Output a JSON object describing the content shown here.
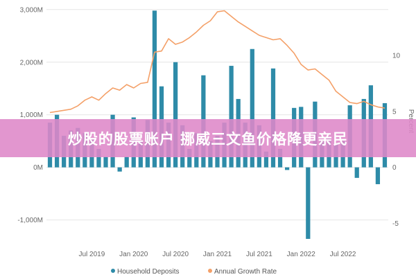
{
  "banner": {
    "text": "炒股的股票账户 挪威三文鱼价格降更亲民"
  },
  "chart_data": {
    "type": "bar+line",
    "title": "",
    "left_axis": {
      "ticks": [
        {
          "value": -1000,
          "label": "-1,000M"
        },
        {
          "value": 0,
          "label": "0M"
        },
        {
          "value": 1000,
          "label": "1,000M"
        },
        {
          "value": 2000,
          "label": "2,000M"
        },
        {
          "value": 3000,
          "label": "3,000M"
        }
      ],
      "ylim": [
        -1400,
        3050
      ]
    },
    "right_axis": {
      "label": "Percent",
      "ticks": [
        {
          "value": -5,
          "label": "-5"
        },
        {
          "value": 0,
          "label": "0"
        },
        {
          "value": 5,
          "label": "5"
        },
        {
          "value": 10,
          "label": "10"
        }
      ],
      "ylim": [
        -6.58,
        14.34
      ]
    },
    "x_axis": {
      "start": "2019-01",
      "ticks": [
        {
          "month": "2019-07",
          "label": "Jul 2019"
        },
        {
          "month": "2020-01",
          "label": "Jan 2020"
        },
        {
          "month": "2020-07",
          "label": "Jul 2020"
        },
        {
          "month": "2021-01",
          "label": "Jan 2021"
        },
        {
          "month": "2021-07",
          "label": "Jul 2021"
        },
        {
          "month": "2022-01",
          "label": "Jan 2022"
        },
        {
          "month": "2022-07",
          "label": "Jul 2022"
        }
      ]
    },
    "series": [
      {
        "name": "Household Deposits",
        "type": "bar",
        "color": "#2e8ba8",
        "values": [
          850,
          1000,
          600,
          700,
          750,
          650,
          550,
          350,
          200,
          1000,
          -80,
          200,
          950,
          500,
          900,
          2980,
          1540,
          850,
          2000,
          800,
          350,
          650,
          1750,
          500,
          600,
          850,
          1930,
          1300,
          850,
          2250,
          800,
          300,
          1880,
          350,
          -50,
          1130,
          1150,
          -1360,
          1250,
          500,
          550,
          450,
          500,
          1180,
          -200,
          1300,
          1560,
          -320,
          1220
        ]
      },
      {
        "name": "Annual Growth Rate",
        "type": "line",
        "color": "#f4a068",
        "values": [
          4.9,
          5.0,
          5.1,
          5.2,
          5.5,
          6.0,
          6.3,
          6.0,
          6.6,
          7.1,
          6.9,
          7.4,
          7.1,
          7.5,
          7.6,
          10.3,
          10.4,
          11.5,
          11.0,
          11.2,
          11.6,
          12.1,
          12.7,
          13.1,
          13.9,
          14.0,
          13.5,
          13.0,
          12.6,
          12.2,
          11.8,
          11.6,
          11.4,
          11.5,
          10.9,
          10.2,
          9.2,
          8.7,
          8.8,
          8.3,
          7.8,
          6.8,
          6.3,
          5.8,
          5.7,
          5.9,
          5.6,
          5.4,
          5.3
        ]
      }
    ],
    "legend": {
      "position": "bottom"
    }
  }
}
